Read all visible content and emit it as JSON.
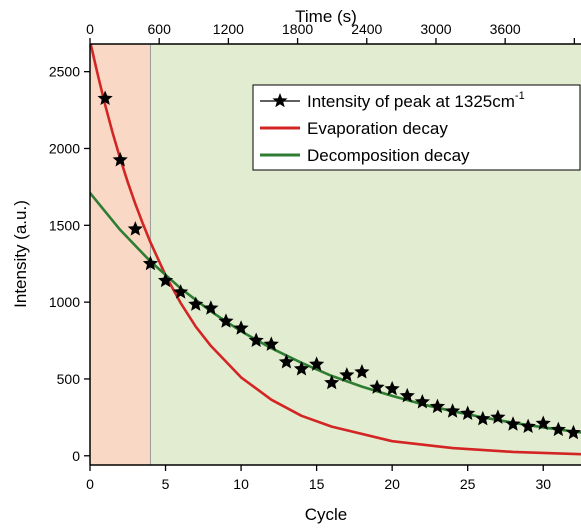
{
  "chart_data": {
    "type": "scatter",
    "title": "",
    "xlabel": "Cycle",
    "ylabel": "Intensity (a.u.)",
    "top_xlabel": "Time (s)",
    "xlim": [
      0,
      32.5
    ],
    "ylim": [
      -60,
      2680
    ],
    "xticks": [
      0,
      5,
      10,
      15,
      20,
      25,
      30
    ],
    "xtick_labels": [
      "0",
      "5",
      "10",
      "15",
      "20",
      "25",
      "30"
    ],
    "yticks": [
      0,
      500,
      1000,
      1500,
      2000,
      2500
    ],
    "ytick_labels": [
      "0",
      "500",
      "1000",
      "1500",
      "2000",
      "2500"
    ],
    "top_ticks_cycle": [
      0,
      4.58,
      9.16,
      13.74,
      18.32,
      22.9,
      27.48,
      32.06
    ],
    "top_tick_labels": [
      "0",
      "600",
      "1200",
      "1800",
      "2400",
      "3000",
      "3600",
      ""
    ],
    "regions": [
      {
        "name": "evaporation",
        "x": [
          0,
          4
        ],
        "color": "#f9d9c5"
      },
      {
        "name": "decomposition",
        "x": [
          4,
          32.5
        ],
        "color": "#e2ecd0"
      }
    ],
    "divider_x": 4,
    "legend_position": "top-right",
    "series": [
      {
        "name": "Intensity of peak at 1325cm",
        "name_superscript": "-1",
        "kind": "scatter",
        "marker": "star",
        "color": "#000000",
        "x": [
          1,
          2,
          3,
          4,
          5,
          6,
          7,
          8,
          9,
          10,
          11,
          12,
          13,
          14,
          15,
          16,
          17,
          18,
          19,
          20,
          21,
          22,
          23,
          24,
          25,
          26,
          27,
          28,
          29,
          30,
          31,
          32
        ],
        "y": [
          2325,
          1925,
          1475,
          1250,
          1140,
          1065,
          985,
          960,
          875,
          830,
          750,
          725,
          610,
          565,
          595,
          475,
          525,
          545,
          445,
          435,
          390,
          350,
          320,
          290,
          275,
          240,
          250,
          205,
          190,
          210,
          170,
          150
        ]
      },
      {
        "name": "Evaporation decay",
        "kind": "line",
        "color": "#d42525",
        "model": "exponential",
        "x": [
          0,
          0.5,
          1,
          1.5,
          2,
          2.5,
          3,
          3.5,
          4,
          5,
          6,
          7,
          8,
          10,
          12,
          14,
          16,
          20,
          24,
          28,
          32.5
        ],
        "y": [
          2700,
          2485,
          2285,
          2100,
          1935,
          1780,
          1640,
          1510,
          1390,
          1175,
          995,
          840,
          715,
          510,
          365,
          260,
          190,
          95,
          50,
          25,
          10
        ]
      },
      {
        "name": "Decomposition decay",
        "kind": "line",
        "color": "#2e7d32",
        "model": "exponential",
        "x": [
          0,
          2,
          4,
          6,
          8,
          10,
          12,
          14,
          16,
          18,
          20,
          22,
          24,
          26,
          28,
          30,
          32.5
        ],
        "y": [
          1710,
          1470,
          1265,
          1090,
          940,
          810,
          700,
          605,
          520,
          450,
          390,
          335,
          290,
          250,
          215,
          185,
          152
        ]
      }
    ]
  }
}
